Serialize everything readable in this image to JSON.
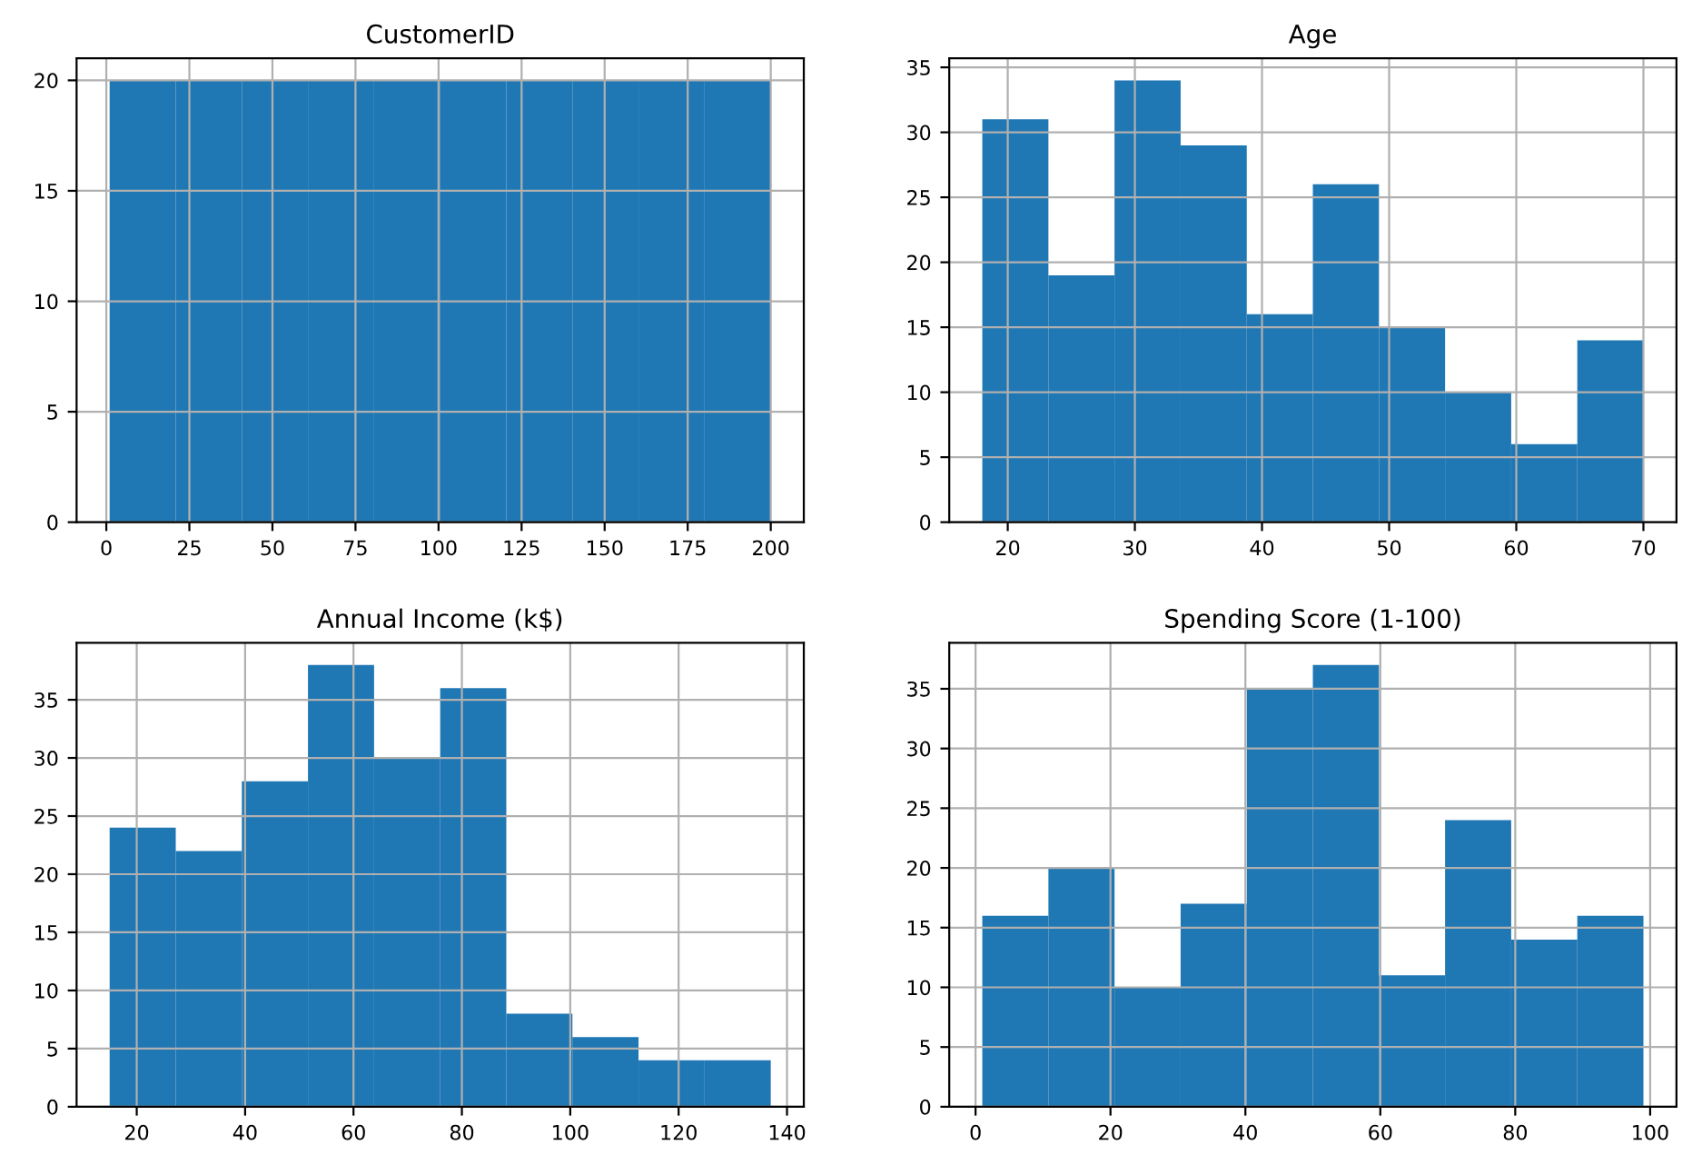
{
  "chart_data": [
    {
      "type": "histogram",
      "title": "CustomerID",
      "bins": [
        1,
        20.9,
        40.8,
        60.7,
        80.6,
        100.5,
        120.4,
        140.3,
        160.2,
        180.1,
        200
      ],
      "values": [
        20,
        20,
        20,
        20,
        20,
        20,
        20,
        20,
        20,
        20
      ],
      "color": "#1f77b4",
      "xlim": [
        -8.95,
        209.95
      ],
      "xticks": [
        0,
        25,
        50,
        75,
        100,
        125,
        150,
        175,
        200
      ],
      "ylim": [
        0,
        21
      ],
      "yticks": [
        0,
        5,
        10,
        15,
        20
      ],
      "grid": true
    },
    {
      "type": "histogram",
      "title": "Age",
      "bins": [
        18,
        23.2,
        28.4,
        33.6,
        38.8,
        44,
        49.2,
        54.4,
        59.6,
        64.8,
        70
      ],
      "values": [
        31,
        19,
        34,
        29,
        16,
        26,
        15,
        10,
        6,
        14
      ],
      "color": "#1f77b4",
      "xlim": [
        15.4,
        72.6
      ],
      "xticks": [
        20,
        30,
        40,
        50,
        60,
        70
      ],
      "ylim": [
        0,
        35.7
      ],
      "yticks": [
        0,
        5,
        10,
        15,
        20,
        25,
        30,
        35
      ],
      "grid": true
    },
    {
      "type": "histogram",
      "title": "Annual Income (k$)",
      "bins": [
        15,
        27.2,
        39.4,
        51.6,
        63.8,
        76,
        88.2,
        100.4,
        112.6,
        124.8,
        137
      ],
      "values": [
        24,
        22,
        28,
        38,
        30,
        36,
        8,
        6,
        4,
        4
      ],
      "color": "#1f77b4",
      "xlim": [
        8.9,
        143.1
      ],
      "xticks": [
        20,
        40,
        60,
        80,
        100,
        120,
        140
      ],
      "ylim": [
        0,
        39.9
      ],
      "yticks": [
        0,
        5,
        10,
        15,
        20,
        25,
        30,
        35
      ],
      "grid": true
    },
    {
      "type": "histogram",
      "title": "Spending Score (1-100)",
      "bins": [
        1,
        10.8,
        20.6,
        30.4,
        40.2,
        50,
        59.8,
        69.6,
        79.4,
        89.2,
        99
      ],
      "values": [
        16,
        20,
        10,
        17,
        35,
        37,
        11,
        24,
        14,
        16
      ],
      "color": "#1f77b4",
      "xlim": [
        -3.9,
        103.9
      ],
      "xticks": [
        0,
        20,
        40,
        60,
        80,
        100
      ],
      "ylim": [
        0,
        38.85
      ],
      "yticks": [
        0,
        5,
        10,
        15,
        20,
        25,
        30,
        35
      ],
      "grid": true
    }
  ]
}
